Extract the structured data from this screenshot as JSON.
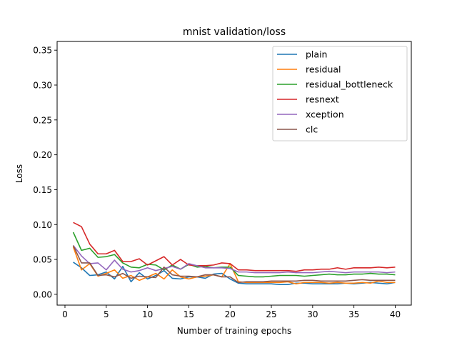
{
  "chart_data": {
    "type": "line",
    "title": "mnist validation/loss",
    "xlabel": "Number of training epochs",
    "ylabel": "Loss",
    "xlim": [
      -0.95,
      41.95
    ],
    "ylim": [
      -0.0155,
      0.3625
    ],
    "xticks": [
      0,
      5,
      10,
      15,
      20,
      25,
      30,
      35,
      40
    ],
    "yticks": [
      0.0,
      0.05,
      0.1,
      0.15,
      0.2,
      0.25,
      0.3,
      0.35
    ],
    "ytick_labels": [
      "0.00",
      "0.05",
      "0.10",
      "0.15",
      "0.20",
      "0.25",
      "0.30",
      "0.35"
    ],
    "grid": false,
    "legend_position": "top-right",
    "x": [
      1,
      2,
      3,
      4,
      5,
      6,
      7,
      8,
      9,
      10,
      11,
      12,
      13,
      14,
      15,
      16,
      17,
      18,
      19,
      20,
      21,
      22,
      23,
      24,
      25,
      26,
      27,
      28,
      29,
      30,
      31,
      32,
      33,
      34,
      35,
      36,
      37,
      38,
      39,
      40
    ],
    "series": [
      {
        "name": "plain",
        "color": "#1f77b4",
        "values": [
          0.046,
          0.038,
          0.027,
          0.028,
          0.032,
          0.022,
          0.04,
          0.018,
          0.031,
          0.022,
          0.027,
          0.034,
          0.023,
          0.022,
          0.025,
          0.025,
          0.023,
          0.029,
          0.03,
          0.022,
          0.016,
          0.015,
          0.015,
          0.015,
          0.015,
          0.014,
          0.014,
          0.016,
          0.016,
          0.015,
          0.015,
          0.015,
          0.015,
          0.016,
          0.015,
          0.016,
          0.017,
          0.016,
          0.015,
          0.017
        ]
      },
      {
        "name": "residual",
        "color": "#ff7f0e",
        "values": [
          0.068,
          0.035,
          0.044,
          0.026,
          0.03,
          0.035,
          0.023,
          0.027,
          0.02,
          0.025,
          0.03,
          0.022,
          0.035,
          0.025,
          0.022,
          0.025,
          0.026,
          0.028,
          0.025,
          0.044,
          0.018,
          0.017,
          0.017,
          0.017,
          0.017,
          0.017,
          0.018,
          0.015,
          0.017,
          0.017,
          0.017,
          0.016,
          0.017,
          0.016,
          0.016,
          0.017,
          0.016,
          0.019,
          0.017,
          0.017
        ]
      },
      {
        "name": "residual_bottleneck",
        "color": "#2ca02c",
        "values": [
          0.089,
          0.063,
          0.066,
          0.053,
          0.054,
          0.057,
          0.045,
          0.039,
          0.038,
          0.043,
          0.042,
          0.035,
          0.042,
          0.036,
          0.043,
          0.039,
          0.04,
          0.038,
          0.039,
          0.039,
          0.027,
          0.026,
          0.025,
          0.025,
          0.026,
          0.027,
          0.027,
          0.027,
          0.026,
          0.027,
          0.028,
          0.029,
          0.028,
          0.028,
          0.029,
          0.029,
          0.03,
          0.029,
          0.029,
          0.028
        ]
      },
      {
        "name": "resnext",
        "color": "#d62728",
        "values": [
          0.103,
          0.097,
          0.072,
          0.058,
          0.058,
          0.063,
          0.047,
          0.047,
          0.051,
          0.042,
          0.048,
          0.054,
          0.042,
          0.05,
          0.042,
          0.041,
          0.041,
          0.042,
          0.045,
          0.044,
          0.035,
          0.035,
          0.034,
          0.034,
          0.034,
          0.034,
          0.034,
          0.033,
          0.035,
          0.035,
          0.036,
          0.036,
          0.038,
          0.036,
          0.038,
          0.038,
          0.038,
          0.039,
          0.038,
          0.039
        ]
      },
      {
        "name": "xception",
        "color": "#9467bd",
        "values": [
          0.07,
          0.055,
          0.044,
          0.045,
          0.035,
          0.049,
          0.036,
          0.032,
          0.034,
          0.038,
          0.034,
          0.037,
          0.04,
          0.036,
          0.044,
          0.041,
          0.038,
          0.038,
          0.038,
          0.037,
          0.032,
          0.032,
          0.031,
          0.031,
          0.031,
          0.031,
          0.032,
          0.031,
          0.031,
          0.031,
          0.032,
          0.033,
          0.032,
          0.031,
          0.032,
          0.032,
          0.032,
          0.032,
          0.031,
          0.032
        ]
      },
      {
        "name": "clc",
        "color": "#8c564b",
        "values": [
          0.07,
          0.045,
          0.045,
          0.027,
          0.028,
          0.025,
          0.03,
          0.023,
          0.026,
          0.025,
          0.024,
          0.039,
          0.028,
          0.026,
          0.026,
          0.025,
          0.028,
          0.028,
          0.025,
          0.025,
          0.017,
          0.018,
          0.018,
          0.018,
          0.019,
          0.019,
          0.019,
          0.019,
          0.02,
          0.02,
          0.019,
          0.019,
          0.019,
          0.019,
          0.02,
          0.021,
          0.02,
          0.02,
          0.02,
          0.02
        ]
      }
    ]
  }
}
